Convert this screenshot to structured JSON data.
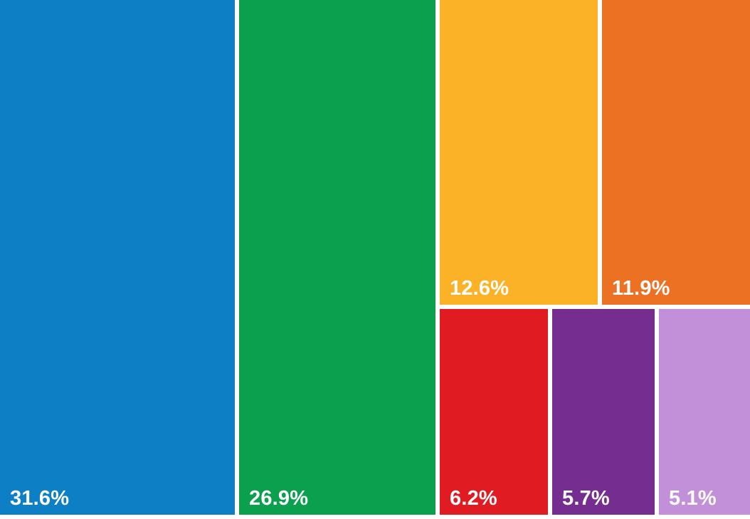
{
  "chart_data": {
    "type": "treemap",
    "title": "",
    "labels": [
      "31.6%",
      "26.9%",
      "12.6%",
      "11.9%",
      "6.2%",
      "5.7%",
      "5.1%"
    ],
    "values": [
      31.6,
      26.9,
      12.6,
      11.9,
      6.2,
      5.7,
      5.1
    ],
    "layout_hints": {
      "label_position": "bottom-left-inside-tile",
      "label_color": "#ffffff",
      "gap_color": "#ffffff",
      "legend": "none",
      "axes": "none"
    },
    "tiles": [
      {
        "label": "31.6%",
        "value": 31.6,
        "color": "#0d7fc4"
      },
      {
        "label": "26.9%",
        "value": 26.9,
        "color": "#0ba04e"
      },
      {
        "label": "12.6%",
        "value": 12.6,
        "color": "#fbb226"
      },
      {
        "label": "11.9%",
        "value": 11.9,
        "color": "#ec7123"
      },
      {
        "label": "6.2%",
        "value": 6.2,
        "color": "#e01b22"
      },
      {
        "label": "5.7%",
        "value": 5.7,
        "color": "#762d90"
      },
      {
        "label": "5.1%",
        "value": 5.1,
        "color": "#c28fd9"
      }
    ]
  }
}
